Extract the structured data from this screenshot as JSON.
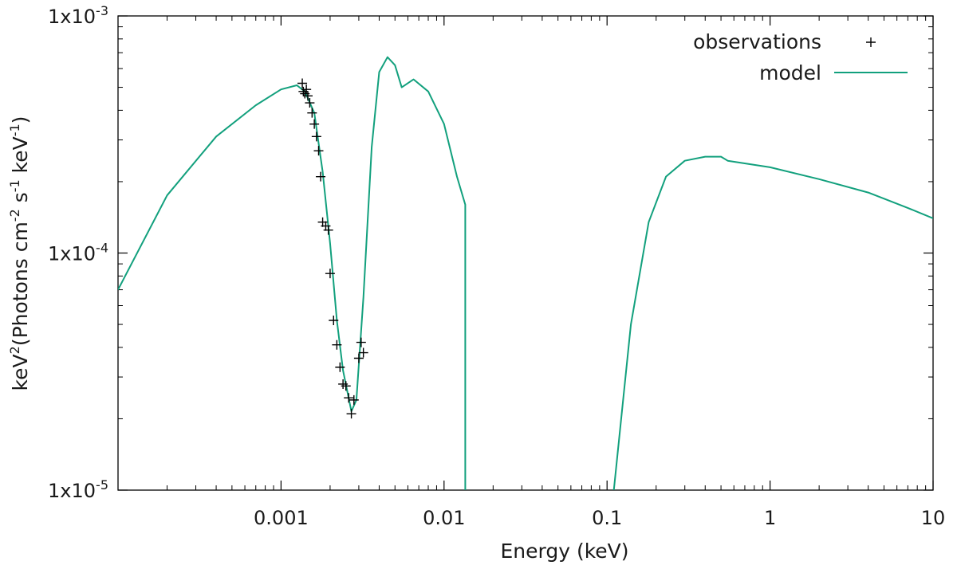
{
  "chart_data": {
    "type": "line",
    "xlabel": "Energy (keV)",
    "ylabel_parts": [
      "keV",
      "2",
      "(Photons cm",
      "-2",
      " s",
      "-1",
      " keV",
      "-1",
      ")"
    ],
    "x_scale": "log",
    "y_scale": "log",
    "xlim": [
      0.0001,
      10
    ],
    "ylim": [
      1e-05,
      0.001
    ],
    "grid": false,
    "legend_position": "top-right",
    "x_ticks": [
      {
        "value": 0.001,
        "label": "0.001"
      },
      {
        "value": 0.01,
        "label": "0.01"
      },
      {
        "value": 0.1,
        "label": "0.1"
      },
      {
        "value": 1,
        "label": "1"
      },
      {
        "value": 10,
        "label": "10"
      }
    ],
    "y_ticks": [
      {
        "value": 1e-05,
        "base": "1x10",
        "exp": "-5"
      },
      {
        "value": 0.0001,
        "base": "1x10",
        "exp": "-4"
      },
      {
        "value": 0.001,
        "base": "1x10",
        "exp": "-3"
      }
    ],
    "colors": {
      "model": "#12a07d",
      "observations": "#000000"
    },
    "series": [
      {
        "name": "observations",
        "style": "points-plus",
        "points": [
          [
            0.00135,
            0.00052
          ],
          [
            0.00137,
            0.00048
          ],
          [
            0.0014,
            0.00047
          ],
          [
            0.00143,
            0.00049
          ],
          [
            0.00146,
            0.00046
          ],
          [
            0.0015,
            0.00043
          ],
          [
            0.00155,
            0.00039
          ],
          [
            0.0016,
            0.00035
          ],
          [
            0.00165,
            0.00031
          ],
          [
            0.0017,
            0.00027
          ],
          [
            0.00175,
            0.00021
          ],
          [
            0.0018,
            0.000135
          ],
          [
            0.00188,
            0.00013
          ],
          [
            0.00195,
            0.000125
          ],
          [
            0.002,
            8.2e-05
          ],
          [
            0.0021,
            5.2e-05
          ],
          [
            0.0022,
            4.1e-05
          ],
          [
            0.0023,
            3.3e-05
          ],
          [
            0.0024,
            2.8e-05
          ],
          [
            0.0025,
            2.75e-05
          ],
          [
            0.0026,
            2.45e-05
          ],
          [
            0.0027,
            2.1e-05
          ],
          [
            0.0028,
            2.4e-05
          ],
          [
            0.003,
            3.6e-05
          ],
          [
            0.0031,
            4.2e-05
          ],
          [
            0.0032,
            3.8e-05
          ]
        ]
      },
      {
        "name": "model",
        "style": "line",
        "segments": [
          [
            [
              0.0001,
              7e-05
            ],
            [
              0.0002,
              0.000175
            ],
            [
              0.0004,
              0.00031
            ],
            [
              0.0007,
              0.00042
            ],
            [
              0.001,
              0.00049
            ],
            [
              0.00125,
              0.00051
            ],
            [
              0.0014,
              0.00048
            ],
            [
              0.0016,
              0.00039
            ],
            [
              0.0018,
              0.00022
            ],
            [
              0.002,
              0.00011
            ],
            [
              0.0022,
              5.2e-05
            ],
            [
              0.0024,
              3.2e-05
            ],
            [
              0.0027,
              2.15e-05
            ],
            [
              0.0029,
              2.4e-05
            ],
            [
              0.0032,
              6.5e-05
            ],
            [
              0.0036,
              0.00028
            ],
            [
              0.004,
              0.00058
            ],
            [
              0.0045,
              0.00067
            ],
            [
              0.005,
              0.00062
            ],
            [
              0.0055,
              0.0005
            ],
            [
              0.0065,
              0.00054
            ],
            [
              0.008,
              0.00048
            ],
            [
              0.01,
              0.00035
            ],
            [
              0.012,
              0.00021
            ],
            [
              0.0135,
              0.00016
            ],
            [
              0.0135,
              1e-05
            ]
          ],
          [
            [
              0.11,
              1e-05
            ],
            [
              0.14,
              5e-05
            ],
            [
              0.18,
              0.000135
            ],
            [
              0.23,
              0.00021
            ],
            [
              0.3,
              0.000245
            ],
            [
              0.4,
              0.000255
            ],
            [
              0.5,
              0.000255
            ],
            [
              0.55,
              0.000245
            ],
            [
              1.0,
              0.00023
            ],
            [
              2.0,
              0.000205
            ],
            [
              4.0,
              0.00018
            ],
            [
              7.0,
              0.000155
            ],
            [
              10,
              0.00014
            ]
          ]
        ]
      }
    ]
  }
}
